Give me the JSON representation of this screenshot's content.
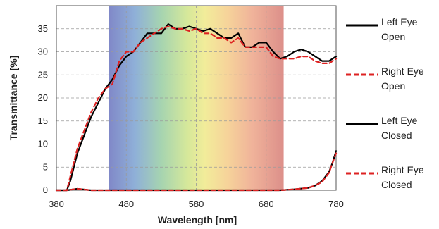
{
  "chart_data": {
    "type": "line",
    "xlabel": "Wavelength [nm]",
    "ylabel": "Transmittance [%]",
    "xlim": [
      380,
      780
    ],
    "ylim": [
      0,
      40
    ],
    "x_ticks": [
      380,
      480,
      580,
      680,
      780
    ],
    "y_ticks": [
      0,
      5,
      10,
      15,
      20,
      25,
      30,
      35
    ],
    "grid": "dashed",
    "legend_position": "right",
    "spectrum_band": [
      455,
      705
    ],
    "series": [
      {
        "name": "Left Eye Open",
        "color": "#000000",
        "style": "solid",
        "points": [
          [
            380,
            0
          ],
          [
            395,
            0
          ],
          [
            400,
            2
          ],
          [
            410,
            8
          ],
          [
            420,
            12
          ],
          [
            430,
            16
          ],
          [
            440,
            19
          ],
          [
            450,
            22
          ],
          [
            460,
            24
          ],
          [
            470,
            27
          ],
          [
            480,
            29
          ],
          [
            490,
            30
          ],
          [
            500,
            32
          ],
          [
            510,
            34
          ],
          [
            520,
            34
          ],
          [
            530,
            34
          ],
          [
            540,
            36
          ],
          [
            550,
            35
          ],
          [
            560,
            35
          ],
          [
            570,
            35.5
          ],
          [
            580,
            35
          ],
          [
            590,
            34.5
          ],
          [
            600,
            35
          ],
          [
            610,
            34
          ],
          [
            620,
            33
          ],
          [
            630,
            33
          ],
          [
            640,
            34
          ],
          [
            650,
            31
          ],
          [
            660,
            31
          ],
          [
            670,
            32
          ],
          [
            680,
            32
          ],
          [
            690,
            30
          ],
          [
            700,
            28.5
          ],
          [
            710,
            29
          ],
          [
            720,
            30
          ],
          [
            730,
            30.5
          ],
          [
            740,
            30
          ],
          [
            750,
            29
          ],
          [
            760,
            28
          ],
          [
            770,
            28
          ],
          [
            780,
            29
          ]
        ]
      },
      {
        "name": "Right Eye Open",
        "color": "#dd2222",
        "style": "dashed",
        "points": [
          [
            380,
            0
          ],
          [
            395,
            0
          ],
          [
            400,
            3
          ],
          [
            410,
            9
          ],
          [
            420,
            13
          ],
          [
            430,
            17
          ],
          [
            440,
            20
          ],
          [
            450,
            22
          ],
          [
            460,
            23
          ],
          [
            470,
            28
          ],
          [
            480,
            30
          ],
          [
            490,
            30
          ],
          [
            500,
            32
          ],
          [
            510,
            33
          ],
          [
            520,
            34
          ],
          [
            530,
            35
          ],
          [
            540,
            35.5
          ],
          [
            550,
            35
          ],
          [
            560,
            35
          ],
          [
            570,
            34.5
          ],
          [
            580,
            35
          ],
          [
            590,
            34
          ],
          [
            600,
            34
          ],
          [
            610,
            33
          ],
          [
            620,
            33
          ],
          [
            630,
            32
          ],
          [
            640,
            33
          ],
          [
            650,
            31
          ],
          [
            660,
            31
          ],
          [
            670,
            31
          ],
          [
            680,
            31
          ],
          [
            690,
            29
          ],
          [
            700,
            28.5
          ],
          [
            710,
            28.5
          ],
          [
            720,
            28.5
          ],
          [
            730,
            29
          ],
          [
            740,
            29
          ],
          [
            750,
            28
          ],
          [
            760,
            27.5
          ],
          [
            770,
            27.5
          ],
          [
            780,
            28.5
          ]
        ]
      },
      {
        "name": "Left Eye Closed",
        "color": "#000000",
        "style": "solid",
        "points": [
          [
            380,
            0
          ],
          [
            395,
            0
          ],
          [
            410,
            0.3
          ],
          [
            430,
            0
          ],
          [
            500,
            0
          ],
          [
            600,
            0
          ],
          [
            700,
            0
          ],
          [
            720,
            0.2
          ],
          [
            740,
            0.5
          ],
          [
            750,
            1
          ],
          [
            760,
            2
          ],
          [
            770,
            4
          ],
          [
            775,
            6
          ],
          [
            780,
            8.5
          ]
        ]
      },
      {
        "name": "Right Eye Closed",
        "color": "#dd2222",
        "style": "dashed",
        "points": [
          [
            380,
            0
          ],
          [
            395,
            0
          ],
          [
            410,
            0.3
          ],
          [
            430,
            0
          ],
          [
            500,
            0
          ],
          [
            600,
            0
          ],
          [
            700,
            0
          ],
          [
            720,
            0.2
          ],
          [
            740,
            0.5
          ],
          [
            750,
            1
          ],
          [
            760,
            1.8
          ],
          [
            770,
            3.8
          ],
          [
            775,
            6
          ],
          [
            780,
            8
          ]
        ]
      }
    ]
  },
  "legend": [
    {
      "line1": "Left Eye",
      "line2": "Open",
      "color": "#000000",
      "style": "solid"
    },
    {
      "line1": "Right Eye",
      "line2": "Open",
      "color": "#dd2222",
      "style": "dashed"
    },
    {
      "line1": "Left Eye",
      "line2": "Closed",
      "color": "#000000",
      "style": "solid"
    },
    {
      "line1": "Right Eye",
      "line2": "Closed",
      "color": "#dd2222",
      "style": "dashed"
    }
  ]
}
